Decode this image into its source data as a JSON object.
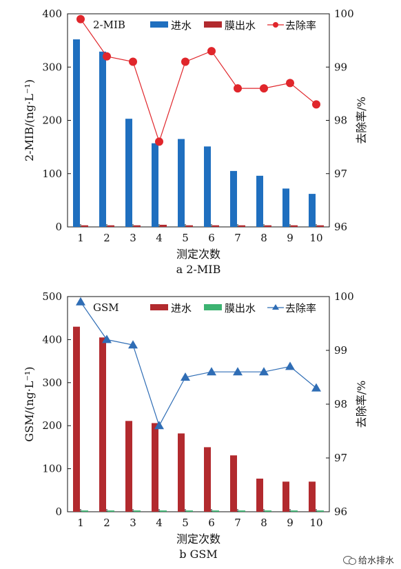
{
  "chart_data": [
    {
      "type": "bar",
      "inset_label": "2-MIB",
      "caption": "a 2-MIB",
      "xlabel": "测定次数",
      "ylabel_left": "2-MIB/(ng·L⁻¹)",
      "ylabel_right": "去除率/%",
      "categories": [
        "1",
        "2",
        "3",
        "4",
        "5",
        "6",
        "7",
        "8",
        "9",
        "10"
      ],
      "ylim_left": [
        0,
        400
      ],
      "yticks_left": [
        0,
        100,
        200,
        300,
        400
      ],
      "ylim_right": [
        96,
        100
      ],
      "yticks_right": [
        96,
        97,
        98,
        99,
        100
      ],
      "legend": [
        "进水",
        "膜出水",
        "去除率"
      ],
      "legend_position": "top",
      "series": [
        {
          "name": "进水",
          "axis": "left",
          "kind": "bar",
          "color": "#1f6fbf",
          "values": [
            352,
            329,
            203,
            157,
            165,
            151,
            105,
            96,
            72,
            62
          ]
        },
        {
          "name": "膜出水",
          "axis": "left",
          "kind": "bar",
          "color": "#b22a2e",
          "values": [
            3,
            3,
            3,
            4,
            3,
            3,
            3,
            3,
            3,
            3
          ]
        },
        {
          "name": "去除率",
          "axis": "right",
          "kind": "line",
          "marker": "circle",
          "color": "#e0262b",
          "values": [
            99.9,
            99.2,
            99.1,
            97.6,
            99.1,
            99.3,
            98.6,
            98.6,
            98.7,
            98.3
          ]
        }
      ]
    },
    {
      "type": "bar",
      "inset_label": "GSM",
      "caption": "b GSM",
      "xlabel": "测定次数",
      "ylabel_left": "GSM/(ng·L⁻¹)",
      "ylabel_right": "去除率/%",
      "categories": [
        "1",
        "2",
        "3",
        "4",
        "5",
        "6",
        "7",
        "8",
        "9",
        "10"
      ],
      "ylim_left": [
        0,
        500
      ],
      "yticks_left": [
        0,
        100,
        200,
        300,
        400,
        500
      ],
      "ylim_right": [
        96,
        100
      ],
      "yticks_right": [
        96,
        97,
        98,
        99,
        100
      ],
      "legend": [
        "进水",
        "膜出水",
        "去除率"
      ],
      "legend_position": "top",
      "series": [
        {
          "name": "进水",
          "axis": "left",
          "kind": "bar",
          "color": "#b22a2e",
          "values": [
            430,
            405,
            211,
            206,
            182,
            150,
            131,
            77,
            70,
            70
          ]
        },
        {
          "name": "膜出水",
          "axis": "left",
          "kind": "bar",
          "color": "#3cb371",
          "values": [
            3,
            3,
            3,
            3,
            3,
            3,
            3,
            3,
            3,
            3
          ]
        },
        {
          "name": "去除率",
          "axis": "right",
          "kind": "line",
          "marker": "triangle",
          "color": "#2f6db5",
          "values": [
            99.9,
            99.2,
            99.1,
            97.6,
            98.5,
            98.6,
            98.6,
            98.6,
            98.7,
            98.3
          ]
        }
      ]
    }
  ],
  "watermark": {
    "text": "给水排水",
    "icon": "wechat-icon"
  }
}
